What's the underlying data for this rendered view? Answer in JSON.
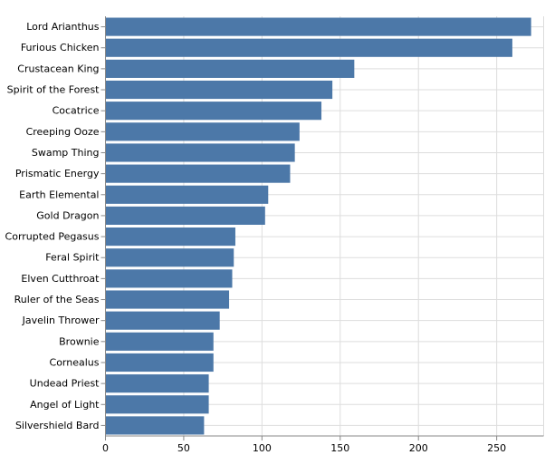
{
  "chart_data": {
    "type": "bar",
    "orientation": "horizontal",
    "title": "",
    "xlabel": "",
    "ylabel": "",
    "categories": [
      "Lord Arianthus",
      "Furious Chicken",
      "Crustacean King",
      "Spirit of the Forest",
      "Cocatrice",
      "Creeping Ooze",
      "Swamp Thing",
      "Prismatic Energy",
      "Earth Elemental",
      "Gold Dragon",
      "Corrupted Pegasus",
      "Feral Spirit",
      "Elven Cutthroat",
      "Ruler of the Seas",
      "Javelin Thrower",
      "Brownie",
      "Cornealus",
      "Undead Priest",
      "Angel of Light",
      "Silvershield Bard"
    ],
    "values": [
      272,
      260,
      159,
      145,
      138,
      124,
      121,
      118,
      104,
      102,
      83,
      82,
      81,
      79,
      73,
      69,
      69,
      66,
      66,
      63
    ],
    "xlim": [
      0,
      280
    ],
    "xticks": [
      0,
      50,
      100,
      150,
      200,
      250
    ],
    "grid": true,
    "bar_color": "#4c78a8",
    "grid_color": "#dddddd",
    "axis_color": "#888888"
  }
}
